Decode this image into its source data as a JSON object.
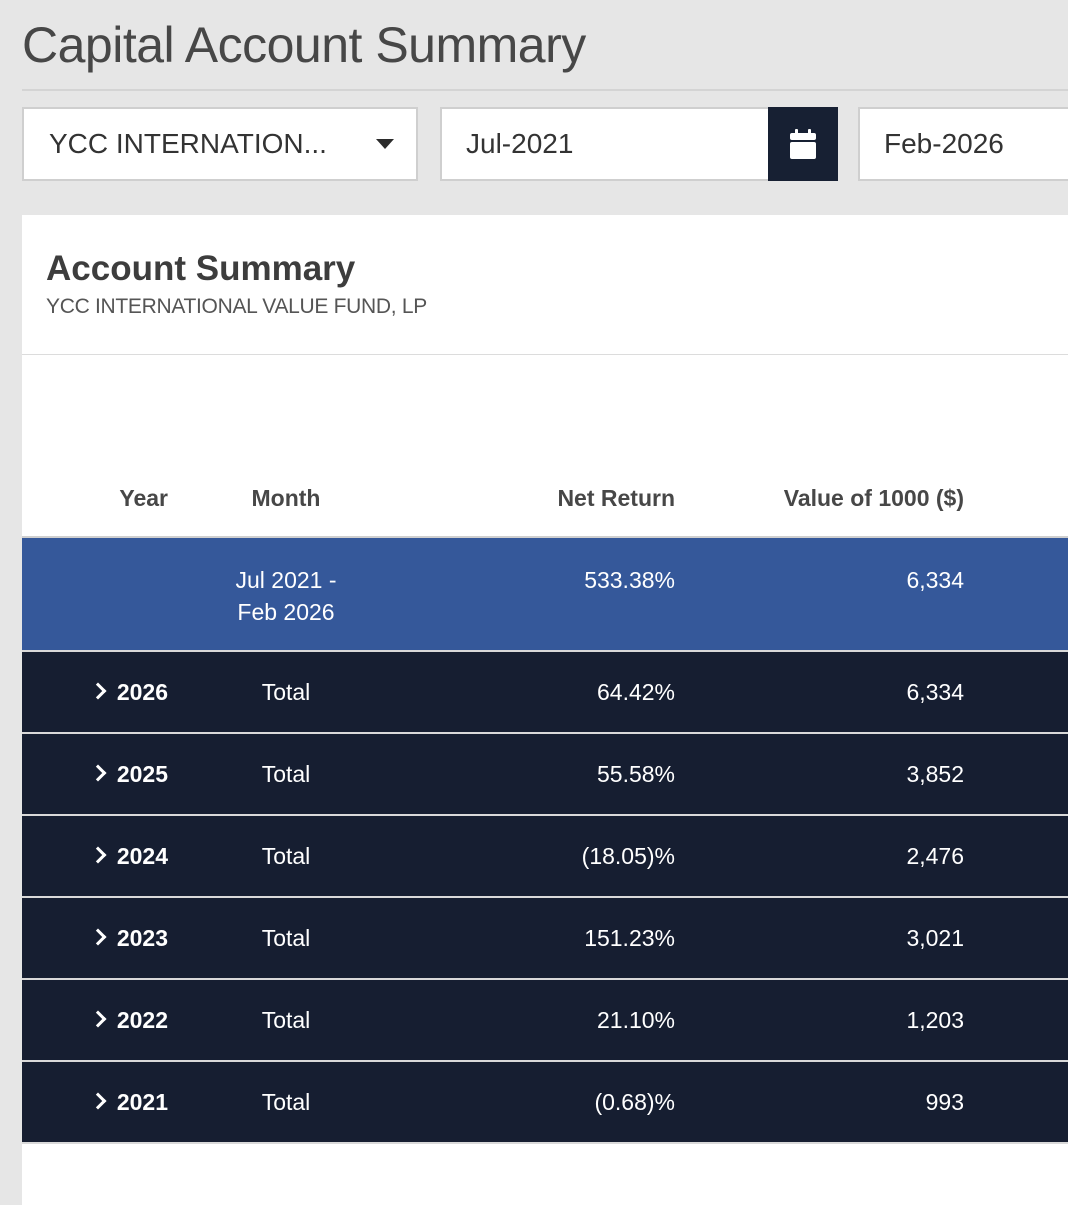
{
  "page": {
    "title": "Capital Account Summary"
  },
  "filters": {
    "fund_selected": "YCC INTERNATION...",
    "start_date": "Jul-2021",
    "end_date": "Feb-2026",
    "calendar_icon": "calendar-icon",
    "dropdown_icon": "caret-down-icon"
  },
  "card": {
    "title": "Account Summary",
    "subtitle": "YCC INTERNATIONAL VALUE FUND, LP"
  },
  "table": {
    "columns": [
      "Year",
      "Month",
      "Net Return",
      "Value of 1000 ($)"
    ],
    "summary": {
      "month_line1": "Jul 2021 -",
      "month_line2": "Feb 2026",
      "net_return": "533.38%",
      "value": "6,334"
    },
    "rows": [
      {
        "year": "2026",
        "month": "Total",
        "net_return": "64.42%",
        "value": "6,334"
      },
      {
        "year": "2025",
        "month": "Total",
        "net_return": "55.58%",
        "value": "3,852"
      },
      {
        "year": "2024",
        "month": "Total",
        "net_return": "(18.05)%",
        "value": "2,476"
      },
      {
        "year": "2023",
        "month": "Total",
        "net_return": "151.23%",
        "value": "3,021"
      },
      {
        "year": "2022",
        "month": "Total",
        "net_return": "21.10%",
        "value": "1,203"
      },
      {
        "year": "2021",
        "month": "Total",
        "net_return": "(0.68)%",
        "value": "993"
      }
    ]
  },
  "colors": {
    "summary_row": "#35589a",
    "year_row": "#161e31",
    "calendar_button": "#172033"
  }
}
